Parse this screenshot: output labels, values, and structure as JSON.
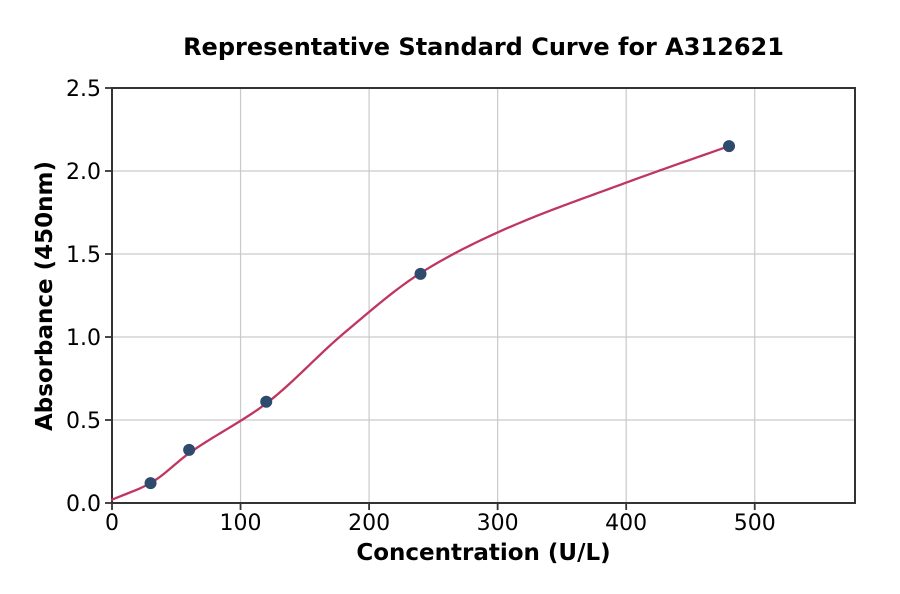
{
  "chart_data": {
    "type": "scatter",
    "title": "Representative Standard Curve for A312621",
    "xlabel": "Concentration (U/L)",
    "ylabel": "Absorbance (450nm)",
    "points": [
      {
        "x": 30,
        "y": 0.12
      },
      {
        "x": 60,
        "y": 0.32
      },
      {
        "x": 120,
        "y": 0.61
      },
      {
        "x": 240,
        "y": 1.38
      },
      {
        "x": 480,
        "y": 2.15
      }
    ],
    "fit_curve_anchors": [
      [
        0,
        0.02
      ],
      [
        30,
        0.12
      ],
      [
        60,
        0.3
      ],
      [
        120,
        0.6
      ],
      [
        180,
        1.02
      ],
      [
        240,
        1.385
      ],
      [
        300,
        1.63
      ],
      [
        400,
        1.93
      ],
      [
        480,
        2.15
      ]
    ],
    "x_ticks": {
      "values": [
        0,
        100,
        200,
        300,
        400,
        500
      ],
      "labels": [
        "0",
        "100",
        "200",
        "300",
        "400",
        "500"
      ]
    },
    "y_ticks": {
      "values": [
        0,
        0.5,
        1.0,
        1.5,
        2.0,
        2.5
      ],
      "labels": [
        "0.0",
        "0.5",
        "1.0",
        "1.5",
        "2.0",
        "2.5"
      ]
    },
    "xlim": [
      0,
      578
    ],
    "ylim": [
      0,
      2.5
    ],
    "grid": true,
    "legend": "none",
    "colors": {
      "curve": "#bf3660",
      "point": "#2e4a6c",
      "grid": "#c9c9c9",
      "spine": "#333333",
      "text": "#000000",
      "background": "#ffffff"
    }
  }
}
